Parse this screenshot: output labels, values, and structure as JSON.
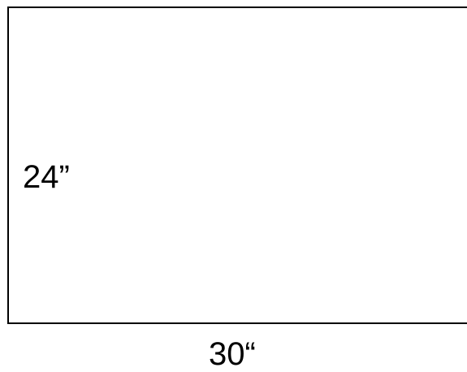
{
  "diagram": {
    "height_label": "24”",
    "width_label": "30“"
  }
}
